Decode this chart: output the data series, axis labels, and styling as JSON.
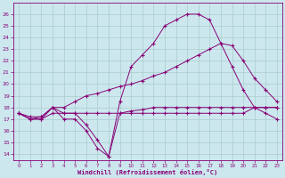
{
  "xlabel": "Windchill (Refroidissement éolien,°C)",
  "background_color": "#cce8ee",
  "grid_color": "#aacccc",
  "line_color": "#880077",
  "x_hours": [
    0,
    1,
    2,
    3,
    4,
    5,
    6,
    7,
    8,
    9,
    10,
    11,
    12,
    13,
    14,
    15,
    16,
    17,
    18,
    19,
    20,
    21,
    22,
    23
  ],
  "line1_flat": [
    17.5,
    17.0,
    17.0,
    17.5,
    17.5,
    17.5,
    17.5,
    17.5,
    17.5,
    17.5,
    17.5,
    17.5,
    17.5,
    17.5,
    17.5,
    17.5,
    17.5,
    17.5,
    17.5,
    17.5,
    17.5,
    18.0,
    18.0,
    18.0
  ],
  "line2_arc": [
    17.5,
    17.0,
    17.2,
    18.0,
    17.5,
    17.5,
    16.5,
    15.2,
    13.8,
    18.5,
    21.5,
    22.5,
    23.5,
    25.0,
    25.5,
    26.0,
    26.0,
    25.5,
    23.5,
    21.5,
    19.5,
    18.0,
    17.5,
    17.0
  ],
  "line3_rise": [
    17.5,
    17.2,
    17.2,
    18.0,
    18.0,
    18.5,
    19.0,
    19.2,
    19.5,
    19.8,
    20.0,
    20.3,
    20.7,
    21.0,
    21.5,
    22.0,
    22.5,
    23.0,
    23.5,
    23.3,
    22.0,
    20.5,
    19.5,
    18.5
  ],
  "line4_dip": [
    17.5,
    17.0,
    17.0,
    18.0,
    17.0,
    17.0,
    16.0,
    14.5,
    13.8,
    17.5,
    17.7,
    17.8,
    18.0,
    18.0,
    18.0,
    18.0,
    18.0,
    18.0,
    18.0,
    18.0,
    18.0,
    18.0,
    18.0,
    18.0
  ],
  "ylim": [
    13.5,
    27.0
  ],
  "xlim": [
    -0.5,
    23.5
  ],
  "yticks": [
    14,
    15,
    16,
    17,
    18,
    19,
    20,
    21,
    22,
    23,
    24,
    25,
    26
  ],
  "xticks": [
    0,
    1,
    2,
    3,
    4,
    5,
    6,
    7,
    8,
    9,
    10,
    11,
    12,
    13,
    14,
    15,
    16,
    17,
    18,
    19,
    20,
    21,
    22,
    23
  ]
}
